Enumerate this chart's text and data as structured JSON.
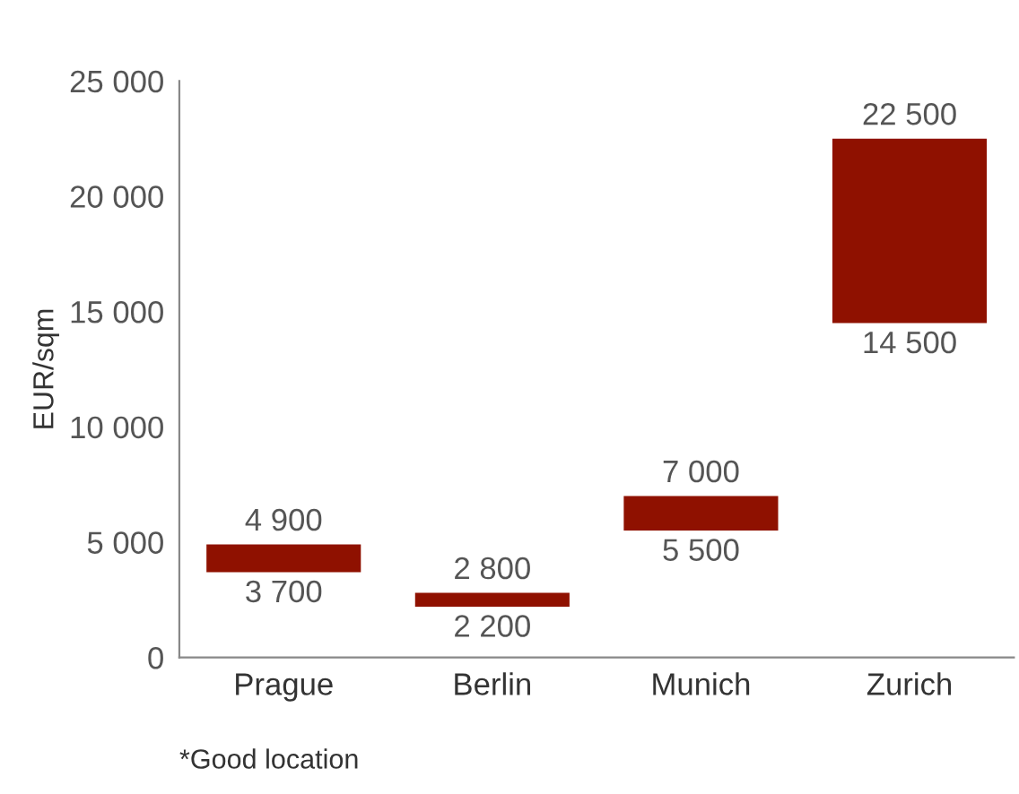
{
  "chart_data": {
    "type": "bar",
    "ylabel": "EUR/sqm",
    "categories": [
      "Prague",
      "Berlin",
      "Munich",
      "Zurich"
    ],
    "base": [
      3700,
      2200,
      5500,
      14500
    ],
    "values": [
      1200,
      600,
      1500,
      8000
    ],
    "color": "#8f1100",
    "ylim": [
      0,
      25000
    ],
    "yticks": [
      {
        "value": 0,
        "label": "0"
      },
      {
        "value": 5000,
        "label": "5 000"
      },
      {
        "value": 10000,
        "label": "10 000"
      },
      {
        "value": 15000,
        "label": "15 000"
      },
      {
        "value": 20000,
        "label": "20 000"
      },
      {
        "value": 25000,
        "label": "25 000"
      }
    ],
    "grid": false,
    "legend": false,
    "annotations": [
      {
        "text": "4 900",
        "x": "Prague",
        "y": 4900
      },
      {
        "text": "3 700",
        "x": "Prague",
        "y": 3700
      },
      {
        "text": "2 800",
        "x": "Berlin",
        "y": 2800
      },
      {
        "text": "2 200",
        "x": "Berlin",
        "y": 2200
      },
      {
        "text": "7 000",
        "x": "Munich",
        "y": 7000
      },
      {
        "text": "5 500",
        "x": "Munich",
        "y": 5500
      },
      {
        "text": "22 500",
        "x": "Zurich",
        "y": 22500
      },
      {
        "text": "14 500",
        "x": "Zurich",
        "y": 14500
      },
      "*Good location"
    ]
  }
}
